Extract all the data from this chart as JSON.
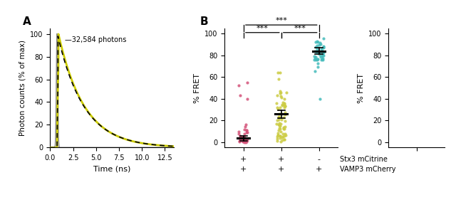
{
  "panel1": {
    "ylabel": "Photon counts (% of max)",
    "xlabel": "Time (ns)",
    "annotation": "32,584 photons",
    "xticks": [
      0,
      2.5,
      5,
      7.5,
      10,
      12.5
    ],
    "yticks": [
      0,
      20,
      40,
      60,
      80,
      100
    ],
    "ylim": [
      0,
      105
    ],
    "xlim": [
      0,
      13.5
    ],
    "irf_color": "#888888",
    "decay_color": "#cccc00",
    "fit_color": "#000000"
  },
  "panel2": {
    "ylabel": "% FRET",
    "yticks": [
      0,
      20,
      40,
      60,
      80,
      100
    ],
    "ylim": [
      -5,
      105
    ],
    "col1_color": "#d4547a",
    "col2_color": "#cccc44",
    "col3_color": "#44bbbb",
    "col1_mean": 3.5,
    "col1_sem": 1.2,
    "col2_mean": 26.0,
    "col2_sem": 1.8,
    "col3_mean": 84.0,
    "col3_sem": 1.5,
    "row1_signs": [
      "+",
      "+",
      "-"
    ],
    "row2_signs": [
      "+",
      "+",
      "+"
    ],
    "row1_label": "Stx3 mCitrine",
    "row2_label": "VAMP3 mCherry"
  },
  "panel3": {
    "ylabel": "% FRET",
    "yticks": [
      0,
      20,
      40,
      60,
      80,
      100
    ],
    "ylim": [
      -5,
      105
    ]
  }
}
